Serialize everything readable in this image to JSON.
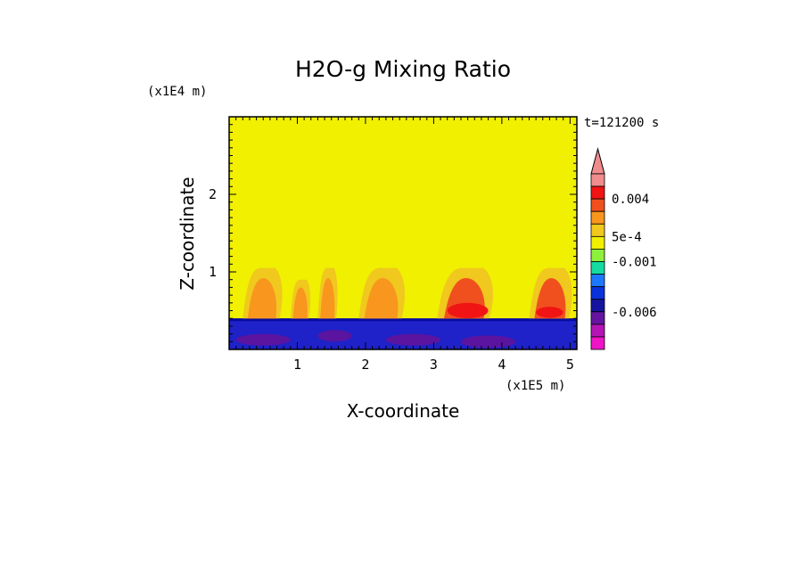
{
  "chart_data": {
    "type": "heatmap",
    "title": "H2O-g Mixing Ratio",
    "xlabel": "X-coordinate",
    "ylabel": "Z-coordinate",
    "x_unit": "(x1E5 m)",
    "y_unit": "(x1E4 m)",
    "time_label": "t=121200 s",
    "xlim": [
      0,
      5.1
    ],
    "ylim": [
      0,
      3
    ],
    "x_ticks": [
      "1",
      "2",
      "3",
      "4",
      "5"
    ],
    "x_tick_values": [
      1,
      2,
      3,
      4,
      5
    ],
    "y_ticks": [
      "1",
      "2"
    ],
    "y_tick_values": [
      1,
      2
    ],
    "background_value": 0,
    "colorbar": {
      "labels": [
        "0.004",
        "5e-4",
        "-0.001",
        "-0.006"
      ],
      "levels": [
        {
          "color": "#f08c8c"
        },
        {
          "color": "#f01414"
        },
        {
          "color": "#f0501e"
        },
        {
          "color": "#f8961e"
        },
        {
          "color": "#f0c81e"
        },
        {
          "color": "#f0f000"
        },
        {
          "color": "#8cf03c"
        },
        {
          "color": "#14dca0"
        },
        {
          "color": "#1e78ff"
        },
        {
          "color": "#0a32dc"
        },
        {
          "color": "#1414a0"
        },
        {
          "color": "#6414a0"
        },
        {
          "color": "#b414b4"
        },
        {
          "color": "#f014c8"
        }
      ]
    },
    "regions": [
      {
        "kind": "surface-layer",
        "x": [
          0,
          5.1
        ],
        "z": [
          0,
          0.4
        ],
        "value": -0.003,
        "color": "#1e22c8"
      },
      {
        "kind": "surface-patch",
        "x": [
          0.1,
          0.9
        ],
        "z": [
          0.05,
          0.2
        ],
        "color": "#5a14a0"
      },
      {
        "kind": "surface-patch",
        "x": [
          1.3,
          1.8
        ],
        "z": [
          0.1,
          0.25
        ],
        "color": "#5a14a0"
      },
      {
        "kind": "surface-patch",
        "x": [
          2.3,
          3.1
        ],
        "z": [
          0.05,
          0.2
        ],
        "color": "#5a14a0"
      },
      {
        "kind": "surface-patch",
        "x": [
          3.4,
          4.2
        ],
        "z": [
          0.02,
          0.18
        ],
        "color": "#5a14a0"
      },
      {
        "kind": "plume",
        "x": [
          0.2,
          0.8
        ],
        "z": [
          0.4,
          1.05
        ],
        "value": 0.002
      },
      {
        "kind": "plume",
        "x": [
          0.9,
          1.2
        ],
        "z": [
          0.4,
          0.9
        ],
        "value": 0.002
      },
      {
        "kind": "plume",
        "x": [
          1.3,
          1.6
        ],
        "z": [
          0.4,
          1.05
        ],
        "value": 0.002
      },
      {
        "kind": "plume",
        "x": [
          1.9,
          2.6
        ],
        "z": [
          0.4,
          1.05
        ],
        "value": 0.002
      },
      {
        "kind": "plume",
        "x": [
          3.05,
          3.9
        ],
        "z": [
          0.4,
          1.05
        ],
        "value": 0.003
      },
      {
        "kind": "plume",
        "x": [
          4.4,
          5.05
        ],
        "z": [
          0.4,
          1.05
        ],
        "value": 0.003
      },
      {
        "kind": "core",
        "x": [
          3.2,
          3.8
        ],
        "z": [
          0.42,
          0.6
        ],
        "value": 0.004
      },
      {
        "kind": "core",
        "x": [
          4.5,
          4.9
        ],
        "z": [
          0.42,
          0.55
        ],
        "value": 0.004
      }
    ]
  }
}
